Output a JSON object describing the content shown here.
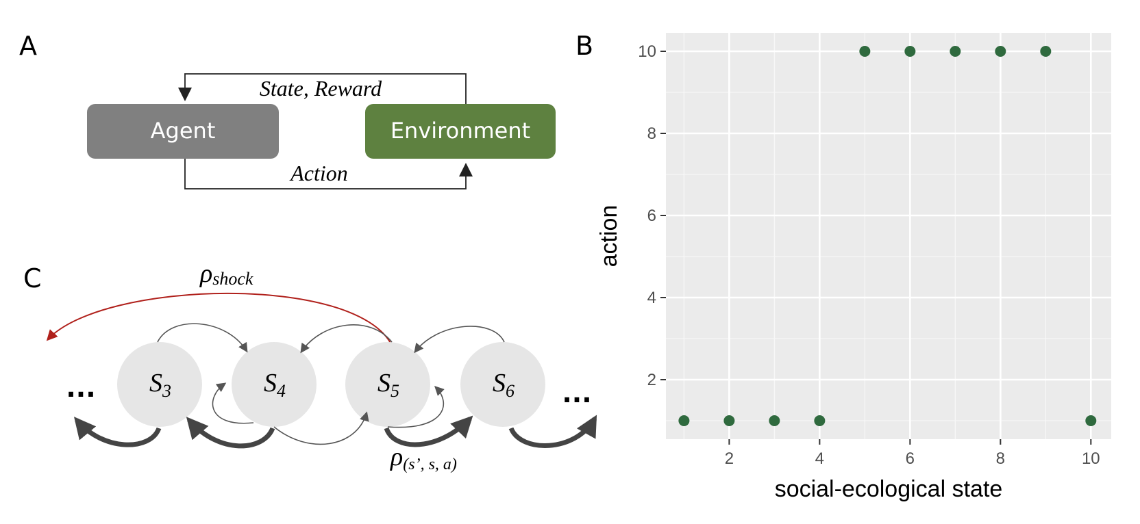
{
  "panel_a": {
    "letter": "A",
    "agent_label": "Agent",
    "environment_label": "Environment",
    "feedback_label": "State, Reward",
    "action_label": "Action",
    "colors": {
      "agent": "#808080",
      "environment": "#5e8140",
      "line": "#222222"
    }
  },
  "panel_b": {
    "letter": "B"
  },
  "panel_c": {
    "letter": "C",
    "ellipsis": "...",
    "states": [
      {
        "base": "S",
        "sub": "3"
      },
      {
        "base": "S",
        "sub": "4"
      },
      {
        "base": "S",
        "sub": "5"
      },
      {
        "base": "S",
        "sub": "6"
      }
    ],
    "shock_label": {
      "base": "ρ",
      "sub": "shock"
    },
    "transition_label": {
      "base": "ρ",
      "sub": "(s’, s, a)"
    },
    "colors": {
      "node": "#e6e6e6",
      "shock": "#b0201b",
      "arrow": "#444444",
      "thin": "#555555"
    }
  },
  "chart_data": {
    "type": "scatter",
    "xlabel": "social-ecological state",
    "ylabel": "action",
    "xlim": [
      0.6,
      10.45
    ],
    "ylim": [
      0.55,
      10.45
    ],
    "xticks": [
      2,
      4,
      6,
      8,
      10
    ],
    "yticks": [
      2,
      4,
      6,
      8,
      10
    ],
    "grid": true,
    "background": "#ebebeb",
    "point_color": "#2f6a3e",
    "x": [
      1,
      2,
      3,
      4,
      5,
      6,
      7,
      8,
      9,
      10
    ],
    "y": [
      1,
      1,
      1,
      1,
      10,
      10,
      10,
      10,
      10,
      1
    ]
  }
}
